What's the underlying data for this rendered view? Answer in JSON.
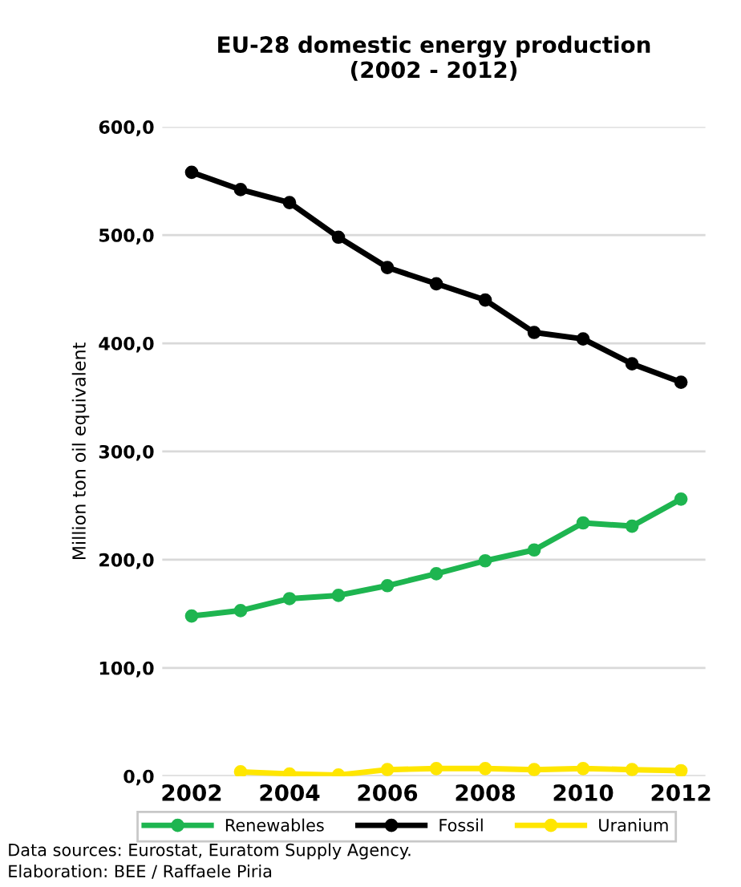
{
  "chart_data": {
    "type": "line",
    "title": "EU-28 domestic energy production\n(2002 - 2012)",
    "ylabel": "Million ton oil equivalent",
    "x": [
      2002,
      2003,
      2004,
      2005,
      2006,
      2007,
      2008,
      2009,
      2010,
      2011,
      2012
    ],
    "series": [
      {
        "name": "Renewables",
        "color": "#1eb550",
        "values": [
          148,
          153,
          164,
          167,
          176,
          187,
          199,
          209,
          234,
          231,
          256
        ]
      },
      {
        "name": "Fossil",
        "color": "#000000",
        "values": [
          558,
          542,
          530,
          498,
          470,
          455,
          440,
          410,
          404,
          381,
          364
        ]
      },
      {
        "name": "Uranium",
        "color": "#ffe600",
        "values": [
          null,
          4,
          2,
          1,
          6,
          7,
          7,
          6,
          7,
          6,
          5
        ]
      }
    ],
    "xlim": [
      2001.4,
      2012.5
    ],
    "xticks": [
      2002,
      2004,
      2006,
      2008,
      2010,
      2012
    ],
    "ylim": [
      0,
      600
    ],
    "yticks": [
      {
        "value": 0,
        "label": "0,0"
      },
      {
        "value": 100,
        "label": "100,0"
      },
      {
        "value": 200,
        "label": "200,0"
      },
      {
        "value": 300,
        "label": "300,0"
      },
      {
        "value": 400,
        "label": "400,0"
      },
      {
        "value": 500,
        "label": "500,0"
      },
      {
        "value": 600,
        "label": "600,0"
      }
    ],
    "grid": "y",
    "legend": "bottom",
    "marker": "circle",
    "line_style": "solid",
    "annotations": [
      "Data sources: Eurostat, Euratom Supply Agency.",
      "Elaboration: BEE / Raffaele Piria"
    ]
  }
}
